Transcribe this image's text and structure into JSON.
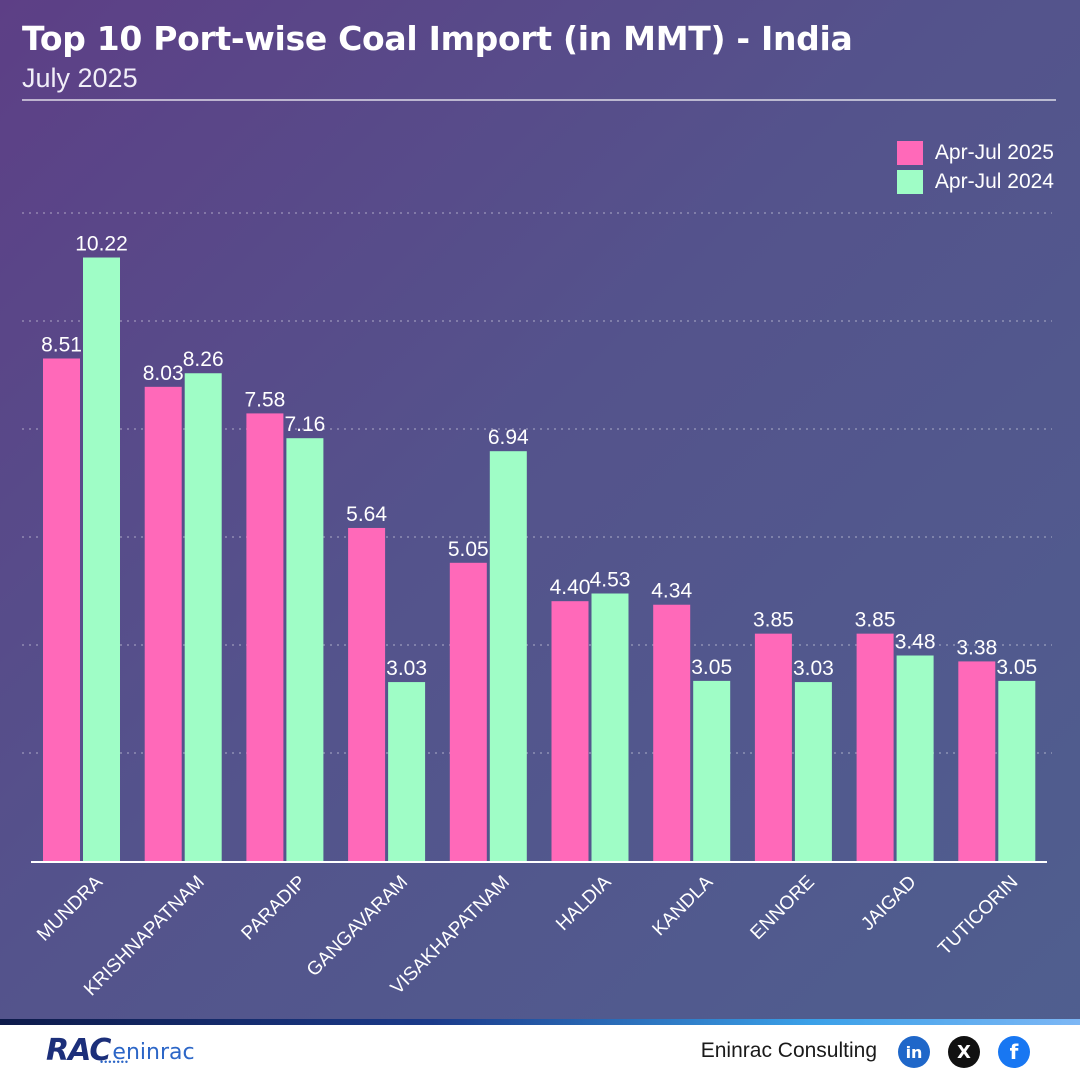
{
  "header": {
    "title": "Top 10 Port-wise Coal Import (in MMT) - India",
    "subtitle": "July 2025"
  },
  "legend": [
    {
      "label": "Apr-Jul 2025",
      "color": "#ff69b9"
    },
    {
      "label": "Apr-Jul 2024",
      "color": "#9ffdc6"
    }
  ],
  "chart_data": {
    "type": "bar",
    "title": "Top 10 Port-wise Coal Import (in MMT) - India",
    "subtitle": "July 2025",
    "categories": [
      "MUNDRA",
      "KRISHNAPATNAM",
      "PARADIP",
      "GANGAVARAM",
      "VISAKHAPATNAM",
      "HALDIA",
      "KANDLA",
      "ENNORE",
      "JAIGAD",
      "TUTICORIN"
    ],
    "series": [
      {
        "name": "Apr-Jul 2025",
        "color": "#ff69b9",
        "values": [
          8.51,
          8.03,
          7.58,
          5.64,
          5.05,
          4.4,
          4.34,
          3.85,
          3.85,
          3.38
        ],
        "labels": [
          "8.51",
          "8.03",
          "7.58",
          "5.64",
          "5.05",
          "4.40",
          "4.34",
          "3.85",
          "3.85",
          "3.38"
        ]
      },
      {
        "name": "Apr-Jul 2024",
        "color": "#9ffdc6",
        "values": [
          10.22,
          8.26,
          7.16,
          3.03,
          6.94,
          4.53,
          3.05,
          3.03,
          3.48,
          3.05
        ],
        "labels": [
          "10.22",
          "8.26",
          "7.16",
          "3.03",
          "6.94",
          "4.53",
          "3.05",
          "3.03",
          "3.48",
          "3.05"
        ]
      }
    ],
    "ylim": [
      0,
      14
    ],
    "grid": true,
    "legend_position": "top-right"
  },
  "footer": {
    "logo_mark": "RAC",
    "logo_word": "eninrac",
    "company": "Eninrac Consulting",
    "social_icons": [
      "linkedin-icon",
      "x-icon",
      "facebook-icon"
    ],
    "social_glyphs": {
      "linkedin": "in",
      "x": "X",
      "facebook": "f"
    }
  }
}
